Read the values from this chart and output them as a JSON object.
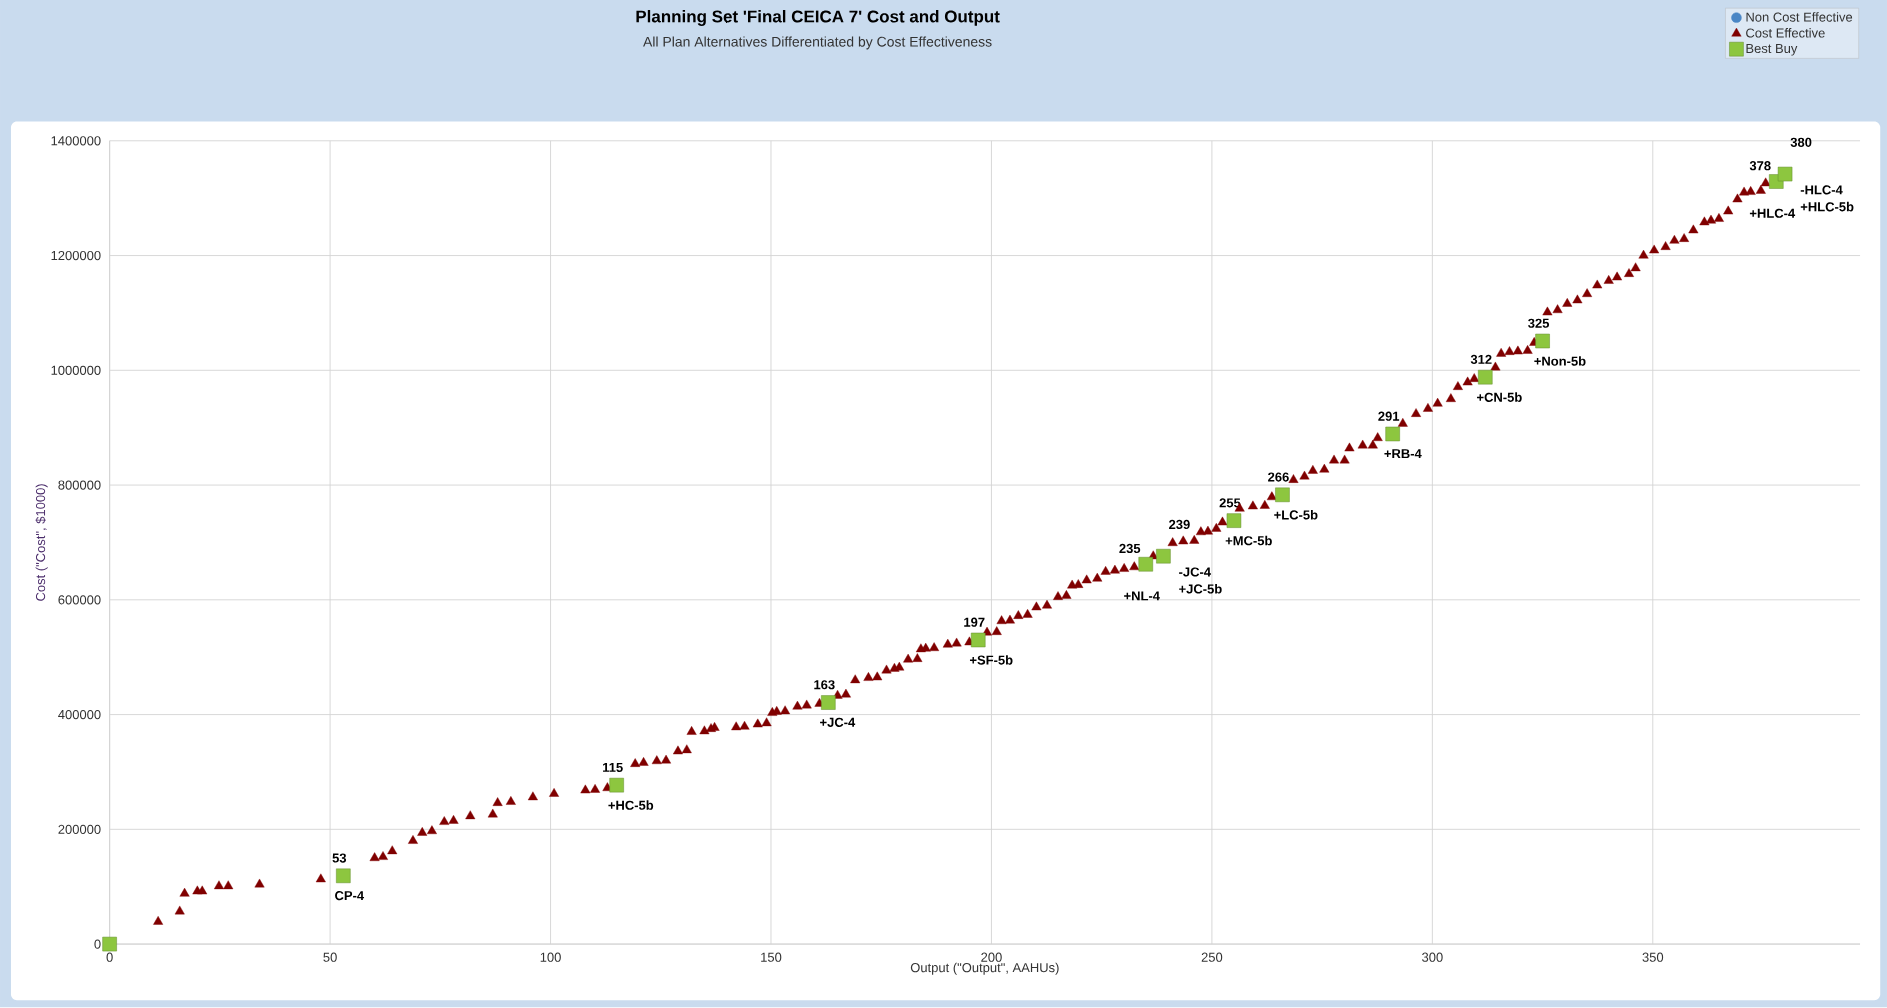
{
  "chart_data": {
    "type": "scatter",
    "title": "Planning Set 'Final CEICA 7' Cost and Output",
    "subtitle": "All Plan Alternatives Differentiated by Cost Effectiveness",
    "xlabel": "Output (\"Output\", AAHUs)",
    "ylabel": "Cost (\"Cost\", $1000)",
    "xlim": [
      0,
      397
    ],
    "ylim": [
      0,
      1400000
    ],
    "xticks": [
      0,
      50,
      100,
      150,
      200,
      250,
      300,
      350
    ],
    "yticks": [
      0,
      200000,
      400000,
      600000,
      800000,
      1000000,
      1200000,
      1400000
    ],
    "grid": true,
    "legend": "top right",
    "series": [
      {
        "name": "Non Cost Effective",
        "color": "#4a86c5",
        "marker": "circle"
      },
      {
        "name": "Cost Effective",
        "color": "#800000",
        "marker": "triangle",
        "x": [
          11.0,
          15.9,
          17.0,
          19.9,
          21.0,
          24.8,
          26.9,
          34.0,
          47.9,
          60.1,
          62.0,
          64.1,
          68.8,
          70.9,
          73.1,
          75.9,
          78.0,
          81.8,
          86.9,
          88.0,
          91.0,
          96.0,
          100.8,
          107.9,
          110.1,
          112.9,
          119.2,
          121.1,
          124.1,
          126.2,
          128.9,
          130.9,
          132.0,
          134.9,
          136.4,
          137.2,
          142.1,
          144.0,
          147.0,
          149.0,
          150.3,
          151.3,
          153.2,
          156.0,
          158.1,
          161.0,
          165.1,
          167.0,
          169.1,
          172.1,
          174.1,
          176.2,
          178.0,
          179.1,
          181.1,
          183.2,
          184.0,
          185.1,
          187.0,
          190.1,
          192.1,
          195.0,
          199.0,
          201.2,
          202.3,
          204.2,
          206.1,
          208.2,
          210.2,
          212.6,
          215.1,
          217.0,
          218.3,
          219.7,
          221.6,
          224.0,
          225.9,
          228.0,
          230.1,
          232.4,
          236.7,
          241.1,
          243.5,
          246.0,
          247.5,
          249.1,
          251.0,
          252.4,
          256.3,
          259.3,
          262.0,
          263.6,
          268.5,
          271.0,
          272.9,
          275.5,
          277.7,
          280.1,
          281.2,
          284.2,
          286.5,
          287.6,
          293.3,
          296.3,
          299.0,
          301.2,
          304.2,
          305.8,
          308.0,
          309.5,
          314.3,
          315.6,
          317.5,
          319.4,
          321.6,
          323.1,
          326.1,
          328.4,
          330.6,
          332.9,
          335.1,
          337.4,
          340.0,
          341.9,
          344.6,
          346.1,
          347.9,
          350.3,
          352.9,
          354.9,
          357.1,
          359.2,
          361.7,
          363.2,
          365.0,
          367.1,
          369.2,
          370.7,
          372.2,
          374.5,
          375.6
        ],
        "values": [
          39000,
          57000,
          88000,
          92000,
          92000,
          101000,
          101000,
          104000,
          113000,
          150000,
          152000,
          162000,
          180000,
          194000,
          197000,
          213000,
          215000,
          223000,
          226000,
          246000,
          248000,
          256000,
          262000,
          268000,
          269000,
          272000,
          314000,
          316000,
          319000,
          320000,
          336000,
          338000,
          370000,
          371000,
          375000,
          377000,
          378000,
          379000,
          383000,
          385000,
          403000,
          405000,
          406000,
          414000,
          416000,
          419000,
          433000,
          435000,
          460000,
          464000,
          465000,
          477000,
          480000,
          482000,
          496000,
          497000,
          514000,
          515000,
          516000,
          522000,
          524000,
          526000,
          543000,
          544000,
          563000,
          564000,
          572000,
          574000,
          587000,
          590000,
          605000,
          607000,
          625000,
          626000,
          634000,
          637000,
          649000,
          651000,
          654000,
          657000,
          676000,
          699000,
          702000,
          703000,
          718000,
          719000,
          724000,
          735000,
          759000,
          763000,
          764000,
          779000,
          809000,
          815000,
          825000,
          827000,
          843000,
          843000,
          864000,
          869000,
          869000,
          882000,
          907000,
          924000,
          933000,
          942000,
          950000,
          971000,
          979000,
          985000,
          1005000,
          1029000,
          1032000,
          1033000,
          1034000,
          1048000,
          1101000,
          1105000,
          1116000,
          1122000,
          1133000,
          1148000,
          1156000,
          1162000,
          1168000,
          1178000,
          1200000,
          1209000,
          1215000,
          1226000,
          1229000,
          1244000,
          1258000,
          1261000,
          1264000,
          1277000,
          1298000,
          1310000,
          1311000,
          1313000,
          1326000
        ]
      },
      {
        "name": "Best Buy",
        "color": "#8dc63f",
        "marker": "square",
        "x": [
          0,
          53,
          115,
          163,
          197,
          235,
          239,
          255,
          266,
          291,
          312,
          325,
          378,
          380
        ],
        "values": [
          0,
          119000,
          277000,
          421000,
          530000,
          662000,
          676000,
          738000,
          783000,
          889000,
          988000,
          1051000,
          1329000,
          1342000
        ]
      }
    ],
    "annotations": [
      {
        "text": "53",
        "x": 53,
        "y": 119000
      },
      {
        "text": "CP-4",
        "x": 53,
        "y": 119000
      },
      {
        "text": "115",
        "x": 115,
        "y": 277000
      },
      {
        "text": "+HC-5b",
        "x": 115,
        "y": 277000
      },
      {
        "text": "163",
        "x": 163,
        "y": 421000
      },
      {
        "text": "+JC-4",
        "x": 163,
        "y": 421000
      },
      {
        "text": "197",
        "x": 197,
        "y": 530000
      },
      {
        "text": "+SF-5b",
        "x": 197,
        "y": 530000
      },
      {
        "text": "235",
        "x": 235,
        "y": 662000
      },
      {
        "text": "+NL-4",
        "x": 235,
        "y": 662000
      },
      {
        "text": "239",
        "x": 239,
        "y": 676000
      },
      {
        "text": "-JC-4",
        "x": 239,
        "y": 676000
      },
      {
        "text": "+JC-5b",
        "x": 239,
        "y": 676000
      },
      {
        "text": "255",
        "x": 255,
        "y": 738000
      },
      {
        "text": "+MC-5b",
        "x": 255,
        "y": 738000
      },
      {
        "text": "266",
        "x": 266,
        "y": 783000
      },
      {
        "text": "+LC-5b",
        "x": 266,
        "y": 783000
      },
      {
        "text": "291",
        "x": 291,
        "y": 889000
      },
      {
        "text": "+RB-4",
        "x": 291,
        "y": 889000
      },
      {
        "text": "312",
        "x": 312,
        "y": 988000
      },
      {
        "text": "+CN-5b",
        "x": 312,
        "y": 988000
      },
      {
        "text": "325",
        "x": 325,
        "y": 1051000
      },
      {
        "text": "+Non-5b",
        "x": 325,
        "y": 1051000
      },
      {
        "text": "378",
        "x": 378,
        "y": 1329000
      },
      {
        "text": "+HLC-4",
        "x": 378,
        "y": 1329000
      },
      {
        "text": "380",
        "x": 380,
        "y": 1342000
      },
      {
        "text": "-HLC-4",
        "x": 380,
        "y": 1342000
      },
      {
        "text": "+HLC-5b",
        "x": 380,
        "y": 1342000
      }
    ]
  }
}
